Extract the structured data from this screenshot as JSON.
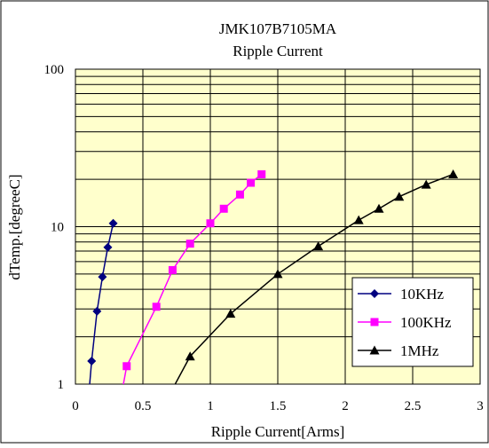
{
  "chart_data": {
    "type": "line",
    "title": "JMK107B7105MA",
    "subtitle": "Ripple Current",
    "xlabel": "Ripple Current[Arms]",
    "ylabel": "dTemp.[degreeC]",
    "xlim": [
      0,
      3
    ],
    "ylim": [
      1,
      100
    ],
    "yscale": "log",
    "x_ticks": [
      "0",
      "0.5",
      "1",
      "1.5",
      "2",
      "2.5",
      "3"
    ],
    "y_ticks": [
      "1",
      "10",
      "100"
    ],
    "grid": true,
    "legend_position": "bottom-right",
    "series": [
      {
        "name": "10KHz",
        "color": "#000080",
        "marker": "diamond",
        "x": [
          0.08,
          0.12,
          0.16,
          0.2,
          0.24,
          0.28
        ],
        "y": [
          0.55,
          1.4,
          2.9,
          4.8,
          7.4,
          10.5
        ]
      },
      {
        "name": "100KHz",
        "color": "#FF00FF",
        "marker": "square",
        "x": [
          0.3,
          0.38,
          0.6,
          0.72,
          0.85,
          1.0,
          1.1,
          1.22,
          1.3,
          1.38
        ],
        "y": [
          0.55,
          1.3,
          3.1,
          5.3,
          7.8,
          10.5,
          13,
          16,
          19,
          21.5
        ]
      },
      {
        "name": "1MHz",
        "color": "#000000",
        "marker": "triangle",
        "x": [
          0.55,
          0.85,
          1.15,
          1.5,
          1.8,
          2.1,
          2.25,
          2.4,
          2.6,
          2.8
        ],
        "y": [
          0.5,
          1.5,
          2.8,
          5.0,
          7.5,
          11,
          13,
          15.5,
          18.5,
          21.5
        ]
      }
    ]
  }
}
